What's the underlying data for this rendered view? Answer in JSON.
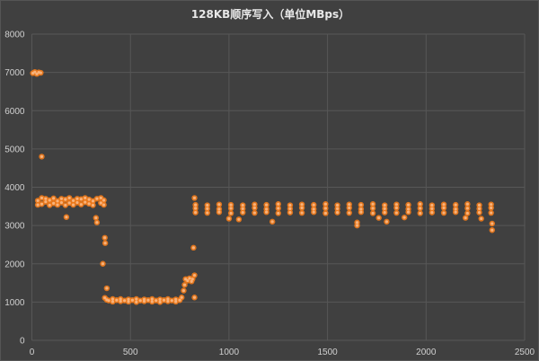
{
  "chart_data": {
    "type": "scatter",
    "title": "128KB顺序写入（单位MBps）",
    "xlabel": "",
    "ylabel": "",
    "xlim": [
      0,
      2500
    ],
    "ylim": [
      0,
      8000
    ],
    "xticks": [
      "0",
      "500",
      "1000",
      "1500",
      "2000",
      "2500"
    ],
    "yticks": [
      "0",
      "1000",
      "2000",
      "3000",
      "4000",
      "5000",
      "6000",
      "7000",
      "8000"
    ],
    "grid": true,
    "legend": "none",
    "colors": {
      "background": "#404040",
      "grid": "#575757",
      "marker": "#f07a1a",
      "marker_center": "#f8b27a",
      "text": "#d0d0d0"
    },
    "points": [
      [
        5,
        6980
      ],
      [
        15,
        7010
      ],
      [
        25,
        6960
      ],
      [
        35,
        7000
      ],
      [
        45,
        6990
      ],
      [
        50,
        4800
      ],
      [
        30,
        3540
      ],
      [
        30,
        3650
      ],
      [
        50,
        3720
      ],
      [
        50,
        3560
      ],
      [
        70,
        3620
      ],
      [
        70,
        3700
      ],
      [
        90,
        3530
      ],
      [
        90,
        3660
      ],
      [
        110,
        3710
      ],
      [
        110,
        3580
      ],
      [
        130,
        3640
      ],
      [
        130,
        3540
      ],
      [
        150,
        3700
      ],
      [
        150,
        3600
      ],
      [
        170,
        3530
      ],
      [
        170,
        3680
      ],
      [
        175,
        3220
      ],
      [
        190,
        3720
      ],
      [
        190,
        3590
      ],
      [
        210,
        3650
      ],
      [
        210,
        3540
      ],
      [
        230,
        3700
      ],
      [
        230,
        3600
      ],
      [
        250,
        3550
      ],
      [
        250,
        3690
      ],
      [
        270,
        3720
      ],
      [
        270,
        3610
      ],
      [
        290,
        3570
      ],
      [
        290,
        3680
      ],
      [
        310,
        3640
      ],
      [
        310,
        3530
      ],
      [
        325,
        3200
      ],
      [
        330,
        3080
      ],
      [
        330,
        3700
      ],
      [
        350,
        3590
      ],
      [
        350,
        3720
      ],
      [
        365,
        3540
      ],
      [
        365,
        3660
      ],
      [
        360,
        2000
      ],
      [
        370,
        2680
      ],
      [
        372,
        2540
      ],
      [
        380,
        1360
      ],
      [
        370,
        1110
      ],
      [
        380,
        1060
      ],
      [
        390,
        1040
      ],
      [
        410,
        1080
      ],
      [
        410,
        1010
      ],
      [
        430,
        1050
      ],
      [
        450,
        1020
      ],
      [
        450,
        1080
      ],
      [
        470,
        1040
      ],
      [
        490,
        1010
      ],
      [
        490,
        1070
      ],
      [
        510,
        1050
      ],
      [
        530,
        1000
      ],
      [
        530,
        1080
      ],
      [
        550,
        1040
      ],
      [
        570,
        1020
      ],
      [
        570,
        1070
      ],
      [
        590,
        1050
      ],
      [
        610,
        1010
      ],
      [
        610,
        1080
      ],
      [
        630,
        1040
      ],
      [
        650,
        1000
      ],
      [
        650,
        1070
      ],
      [
        670,
        1050
      ],
      [
        690,
        1020
      ],
      [
        690,
        1080
      ],
      [
        710,
        1040
      ],
      [
        730,
        1010
      ],
      [
        730,
        1070
      ],
      [
        750,
        1050
      ],
      [
        760,
        1120
      ],
      [
        770,
        1300
      ],
      [
        775,
        1450
      ],
      [
        780,
        1600
      ],
      [
        790,
        1560
      ],
      [
        800,
        1620
      ],
      [
        810,
        1540
      ],
      [
        815,
        1600
      ],
      [
        825,
        1700
      ],
      [
        825,
        1120
      ],
      [
        820,
        2420
      ],
      [
        825,
        3720
      ],
      [
        830,
        3340
      ],
      [
        830,
        3450
      ],
      [
        830,
        3540
      ],
      [
        890,
        3330
      ],
      [
        890,
        3440
      ],
      [
        890,
        3530
      ],
      [
        950,
        3350
      ],
      [
        950,
        3430
      ],
      [
        950,
        3550
      ],
      [
        1000,
        3180
      ],
      [
        1010,
        3320
      ],
      [
        1010,
        3450
      ],
      [
        1010,
        3540
      ],
      [
        1050,
        3160
      ],
      [
        1070,
        3340
      ],
      [
        1070,
        3440
      ],
      [
        1070,
        3530
      ],
      [
        1130,
        3330
      ],
      [
        1130,
        3460
      ],
      [
        1130,
        3550
      ],
      [
        1190,
        3350
      ],
      [
        1190,
        3430
      ],
      [
        1190,
        3540
      ],
      [
        1220,
        3100
      ],
      [
        1250,
        3320
      ],
      [
        1250,
        3450
      ],
      [
        1250,
        3560
      ],
      [
        1310,
        3340
      ],
      [
        1310,
        3440
      ],
      [
        1310,
        3530
      ],
      [
        1370,
        3330
      ],
      [
        1370,
        3460
      ],
      [
        1370,
        3550
      ],
      [
        1430,
        3350
      ],
      [
        1430,
        3430
      ],
      [
        1430,
        3540
      ],
      [
        1490,
        3320
      ],
      [
        1490,
        3450
      ],
      [
        1490,
        3560
      ],
      [
        1550,
        3340
      ],
      [
        1550,
        3440
      ],
      [
        1550,
        3530
      ],
      [
        1610,
        3330
      ],
      [
        1610,
        3460
      ],
      [
        1610,
        3550
      ],
      [
        1650,
        3080
      ],
      [
        1650,
        3000
      ],
      [
        1670,
        3350
      ],
      [
        1670,
        3430
      ],
      [
        1670,
        3540
      ],
      [
        1730,
        3320
      ],
      [
        1730,
        3450
      ],
      [
        1730,
        3560
      ],
      [
        1760,
        3200
      ],
      [
        1790,
        3340
      ],
      [
        1790,
        3440
      ],
      [
        1790,
        3530
      ],
      [
        1800,
        3100
      ],
      [
        1850,
        3330
      ],
      [
        1850,
        3460
      ],
      [
        1850,
        3550
      ],
      [
        1890,
        3210
      ],
      [
        1910,
        3350
      ],
      [
        1910,
        3430
      ],
      [
        1910,
        3540
      ],
      [
        1970,
        3320
      ],
      [
        1970,
        3450
      ],
      [
        1970,
        3560
      ],
      [
        2030,
        3340
      ],
      [
        2030,
        3440
      ],
      [
        2030,
        3530
      ],
      [
        2090,
        3330
      ],
      [
        2090,
        3460
      ],
      [
        2090,
        3550
      ],
      [
        2150,
        3350
      ],
      [
        2150,
        3430
      ],
      [
        2150,
        3540
      ],
      [
        2200,
        3200
      ],
      [
        2210,
        3320
      ],
      [
        2210,
        3450
      ],
      [
        2210,
        3560
      ],
      [
        2270,
        3340
      ],
      [
        2270,
        3440
      ],
      [
        2270,
        3530
      ],
      [
        2280,
        3180
      ],
      [
        2330,
        3330
      ],
      [
        2330,
        3460
      ],
      [
        2330,
        3550
      ],
      [
        2335,
        3050
      ],
      [
        2335,
        2880
      ]
    ]
  }
}
